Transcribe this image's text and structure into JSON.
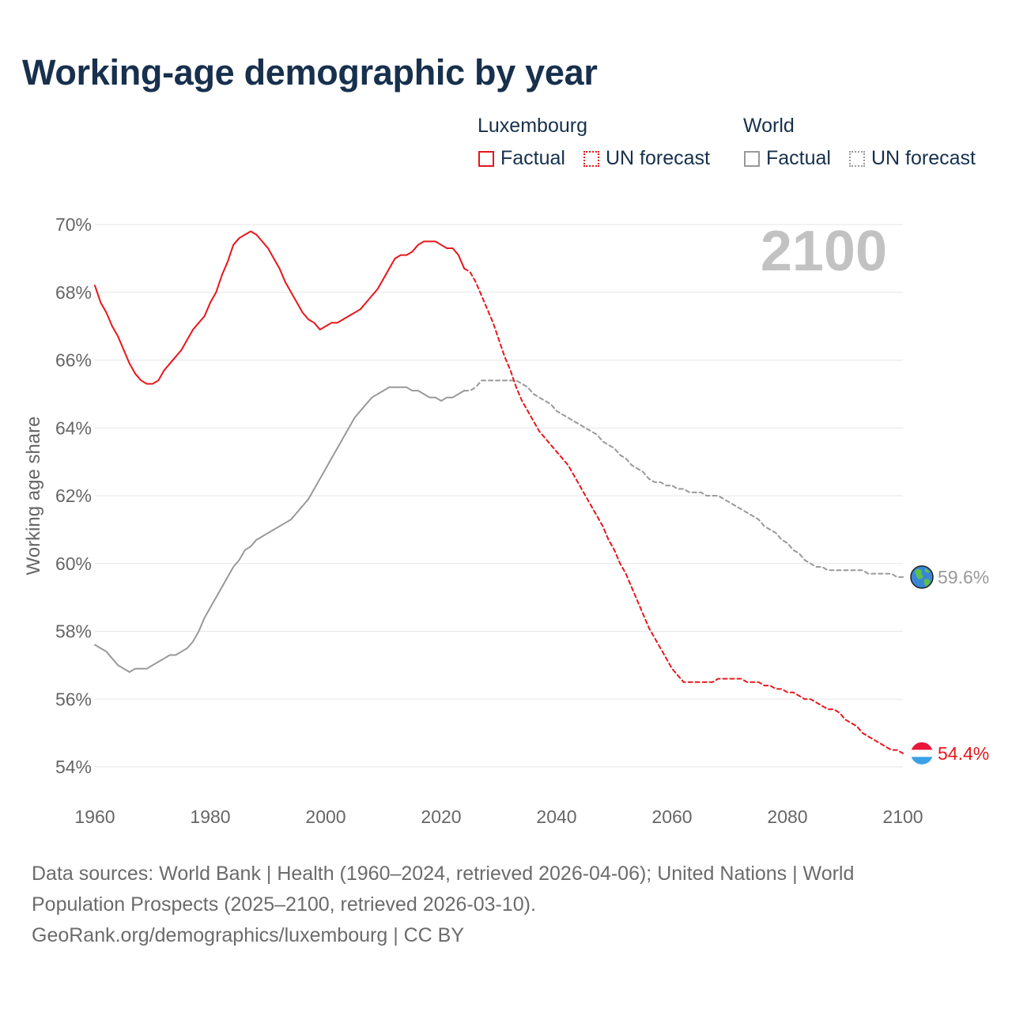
{
  "title": "Working-age demographic by year",
  "legend": {
    "groups": [
      {
        "name": "Luxembourg",
        "factual_label": "Factual",
        "forecast_label": "UN forecast",
        "color": "#e8161b"
      },
      {
        "name": "World",
        "factual_label": "Factual",
        "forecast_label": "UN forecast",
        "color": "#999999"
      }
    ]
  },
  "year_label": "2100",
  "footer": {
    "sources": "Data sources: World Bank | Health (1960–2024, retrieved 2026-04-06); United Nations | World Population Prospects (2025–2100, retrieved 2026-03-10).",
    "credit": "GeoRank.org/demographics/luxembourg | CC BY"
  },
  "chart_data": {
    "type": "line",
    "title": "Working-age demographic by year",
    "xlabel": "",
    "ylabel": "Working age share",
    "xlim": [
      1960,
      2100
    ],
    "ylim": [
      54,
      70
    ],
    "x_ticks": [
      1960,
      1980,
      2000,
      2020,
      2040,
      2060,
      2080,
      2100
    ],
    "x_tick_labels": [
      "1960",
      "1980",
      "2000",
      "2020",
      "2040",
      "2060",
      "2080",
      "2100"
    ],
    "y_ticks": [
      54,
      56,
      58,
      60,
      62,
      64,
      66,
      68,
      70
    ],
    "y_tick_labels": [
      "54%",
      "56%",
      "58%",
      "60%",
      "62%",
      "64%",
      "66%",
      "68%",
      "70%"
    ],
    "grid": true,
    "series": [
      {
        "name": "Luxembourg",
        "kind": "Factual",
        "color": "#e8161b",
        "dash": "solid",
        "x": [
          1960,
          1961,
          1962,
          1963,
          1964,
          1965,
          1966,
          1967,
          1968,
          1969,
          1970,
          1971,
          1972,
          1973,
          1974,
          1975,
          1976,
          1977,
          1978,
          1979,
          1980,
          1981,
          1982,
          1983,
          1984,
          1985,
          1986,
          1987,
          1988,
          1989,
          1990,
          1991,
          1992,
          1993,
          1994,
          1995,
          1996,
          1997,
          1998,
          1999,
          2000,
          2001,
          2002,
          2003,
          2004,
          2005,
          2006,
          2007,
          2008,
          2009,
          2010,
          2011,
          2012,
          2013,
          2014,
          2015,
          2016,
          2017,
          2018,
          2019,
          2020,
          2021,
          2022,
          2023,
          2024
        ],
        "y": [
          68.2,
          67.7,
          67.4,
          67.0,
          66.7,
          66.3,
          65.9,
          65.6,
          65.4,
          65.3,
          65.3,
          65.4,
          65.7,
          65.9,
          66.1,
          66.3,
          66.6,
          66.9,
          67.1,
          67.3,
          67.7,
          68.0,
          68.5,
          68.9,
          69.4,
          69.6,
          69.7,
          69.8,
          69.7,
          69.5,
          69.3,
          69.0,
          68.7,
          68.3,
          68.0,
          67.7,
          67.4,
          67.2,
          67.1,
          66.9,
          67.0,
          67.1,
          67.1,
          67.2,
          67.3,
          67.4,
          67.5,
          67.7,
          67.9,
          68.1,
          68.4,
          68.7,
          69.0,
          69.1,
          69.1,
          69.2,
          69.4,
          69.5,
          69.5,
          69.5,
          69.4,
          69.3,
          69.3,
          69.1,
          68.7
        ]
      },
      {
        "name": "Luxembourg",
        "kind": "UN forecast",
        "color": "#e8161b",
        "dash": "dashed",
        "x": [
          2024,
          2025,
          2026,
          2027,
          2028,
          2029,
          2030,
          2031,
          2032,
          2033,
          2034,
          2035,
          2036,
          2037,
          2038,
          2039,
          2040,
          2041,
          2042,
          2043,
          2044,
          2045,
          2046,
          2047,
          2048,
          2049,
          2050,
          2051,
          2052,
          2053,
          2054,
          2055,
          2056,
          2057,
          2058,
          2059,
          2060,
          2061,
          2062,
          2063,
          2064,
          2065,
          2066,
          2067,
          2068,
          2069,
          2070,
          2071,
          2072,
          2073,
          2074,
          2075,
          2076,
          2077,
          2078,
          2079,
          2080,
          2081,
          2082,
          2083,
          2084,
          2085,
          2086,
          2087,
          2088,
          2089,
          2090,
          2091,
          2092,
          2093,
          2094,
          2095,
          2096,
          2097,
          2098,
          2099,
          2100
        ],
        "y": [
          68.7,
          68.6,
          68.3,
          67.9,
          67.5,
          67.1,
          66.6,
          66.1,
          65.7,
          65.2,
          64.8,
          64.5,
          64.2,
          63.9,
          63.7,
          63.5,
          63.3,
          63.1,
          62.9,
          62.6,
          62.3,
          62.0,
          61.7,
          61.4,
          61.1,
          60.7,
          60.4,
          60.0,
          59.7,
          59.3,
          58.9,
          58.5,
          58.1,
          57.8,
          57.5,
          57.2,
          56.9,
          56.7,
          56.5,
          56.5,
          56.5,
          56.5,
          56.5,
          56.5,
          56.6,
          56.6,
          56.6,
          56.6,
          56.6,
          56.5,
          56.5,
          56.5,
          56.4,
          56.4,
          56.3,
          56.3,
          56.2,
          56.2,
          56.1,
          56.0,
          56.0,
          55.9,
          55.8,
          55.7,
          55.7,
          55.6,
          55.4,
          55.3,
          55.2,
          55.0,
          54.9,
          54.8,
          54.7,
          54.6,
          54.5,
          54.5,
          54.4
        ]
      },
      {
        "name": "World",
        "kind": "Factual",
        "color": "#999999",
        "dash": "solid",
        "x": [
          1960,
          1961,
          1962,
          1963,
          1964,
          1965,
          1966,
          1967,
          1968,
          1969,
          1970,
          1971,
          1972,
          1973,
          1974,
          1975,
          1976,
          1977,
          1978,
          1979,
          1980,
          1981,
          1982,
          1983,
          1984,
          1985,
          1986,
          1987,
          1988,
          1989,
          1990,
          1991,
          1992,
          1993,
          1994,
          1995,
          1996,
          1997,
          1998,
          1999,
          2000,
          2001,
          2002,
          2003,
          2004,
          2005,
          2006,
          2007,
          2008,
          2009,
          2010,
          2011,
          2012,
          2013,
          2014,
          2015,
          2016,
          2017,
          2018,
          2019,
          2020,
          2021,
          2022,
          2023,
          2024
        ],
        "y": [
          57.6,
          57.5,
          57.4,
          57.2,
          57.0,
          56.9,
          56.8,
          56.9,
          56.9,
          56.9,
          57.0,
          57.1,
          57.2,
          57.3,
          57.3,
          57.4,
          57.5,
          57.7,
          58.0,
          58.4,
          58.7,
          59.0,
          59.3,
          59.6,
          59.9,
          60.1,
          60.4,
          60.5,
          60.7,
          60.8,
          60.9,
          61.0,
          61.1,
          61.2,
          61.3,
          61.5,
          61.7,
          61.9,
          62.2,
          62.5,
          62.8,
          63.1,
          63.4,
          63.7,
          64.0,
          64.3,
          64.5,
          64.7,
          64.9,
          65.0,
          65.1,
          65.2,
          65.2,
          65.2,
          65.2,
          65.1,
          65.1,
          65.0,
          64.9,
          64.9,
          64.8,
          64.9,
          64.9,
          65.0,
          65.1
        ]
      },
      {
        "name": "World",
        "kind": "UN forecast",
        "color": "#999999",
        "dash": "dashed",
        "x": [
          2024,
          2025,
          2026,
          2027,
          2028,
          2029,
          2030,
          2031,
          2032,
          2033,
          2034,
          2035,
          2036,
          2037,
          2038,
          2039,
          2040,
          2041,
          2042,
          2043,
          2044,
          2045,
          2046,
          2047,
          2048,
          2049,
          2050,
          2051,
          2052,
          2053,
          2054,
          2055,
          2056,
          2057,
          2058,
          2059,
          2060,
          2061,
          2062,
          2063,
          2064,
          2065,
          2066,
          2067,
          2068,
          2069,
          2070,
          2071,
          2072,
          2073,
          2074,
          2075,
          2076,
          2077,
          2078,
          2079,
          2080,
          2081,
          2082,
          2083,
          2084,
          2085,
          2086,
          2087,
          2088,
          2089,
          2090,
          2091,
          2092,
          2093,
          2094,
          2095,
          2096,
          2097,
          2098,
          2099,
          2100
        ],
        "y": [
          65.1,
          65.1,
          65.2,
          65.4,
          65.4,
          65.4,
          65.4,
          65.4,
          65.4,
          65.4,
          65.3,
          65.2,
          65.0,
          64.9,
          64.8,
          64.7,
          64.5,
          64.4,
          64.3,
          64.2,
          64.1,
          64.0,
          63.9,
          63.8,
          63.6,
          63.5,
          63.4,
          63.2,
          63.1,
          62.9,
          62.8,
          62.7,
          62.5,
          62.4,
          62.4,
          62.3,
          62.3,
          62.2,
          62.2,
          62.1,
          62.1,
          62.1,
          62.0,
          62.0,
          62.0,
          61.9,
          61.8,
          61.7,
          61.6,
          61.5,
          61.4,
          61.3,
          61.1,
          61.0,
          60.9,
          60.7,
          60.6,
          60.4,
          60.3,
          60.1,
          60.0,
          59.9,
          59.9,
          59.8,
          59.8,
          59.8,
          59.8,
          59.8,
          59.8,
          59.8,
          59.7,
          59.7,
          59.7,
          59.7,
          59.7,
          59.6,
          59.6
        ]
      }
    ],
    "end_labels": [
      {
        "series": "World",
        "value": 59.6,
        "text": "59.6%",
        "icon": "globe-icon",
        "color": "#999999"
      },
      {
        "series": "Luxembourg",
        "value": 54.4,
        "text": "54.4%",
        "icon": "luxembourg-flag-icon",
        "color": "#e8161b"
      }
    ]
  }
}
